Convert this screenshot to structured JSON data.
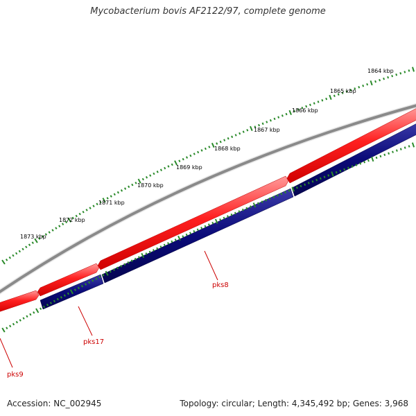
{
  "title": "Mycobacterium bovis AF2122/97, complete genome",
  "accession": "Accession: NC_002945",
  "summary": "Topology: circular; Length: 4,345,492 bp; Genes: 3,968",
  "ruler_labels": [
    "1864 kbp",
    "1865 kbp",
    "1866 kbp",
    "1867 kbp",
    "1868 kbp",
    "1869 kbp",
    "1870 kbp",
    "1871 kbp",
    "1872 kbp",
    "1873 kbp"
  ],
  "gene_labels": [
    "pks8",
    "pks17",
    "pks9"
  ],
  "colors": {
    "backbone": "#8a8a8a",
    "forward_strand": "#ff1a1a",
    "reverse_strand": "#0a0a78",
    "ticks": "#2a8a2a",
    "gene_label": "#cc0000"
  }
}
